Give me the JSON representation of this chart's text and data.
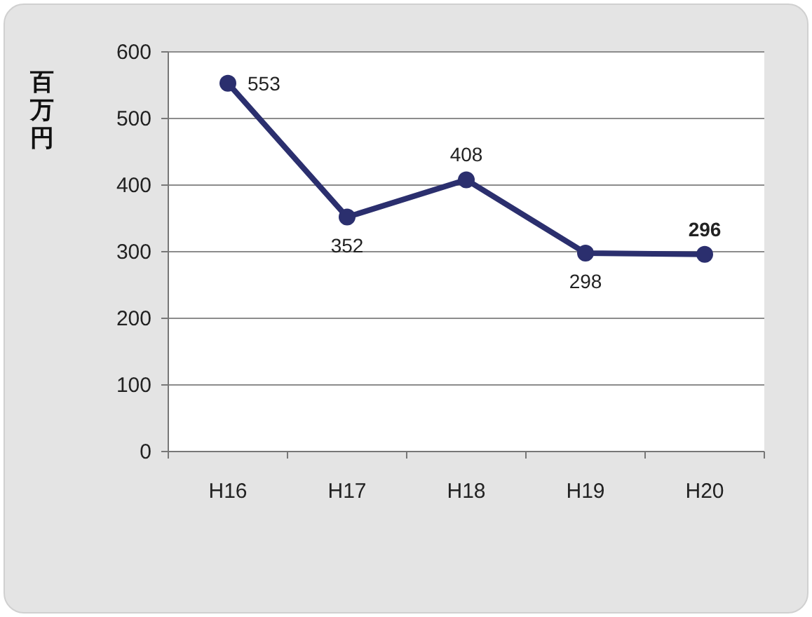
{
  "chart_data": {
    "type": "line",
    "ylabel": "百万円",
    "categories": [
      "H16",
      "H17",
      "H18",
      "H19",
      "H20"
    ],
    "series": [
      {
        "color": "#2b2f6e",
        "values": [
          553,
          352,
          408,
          298,
          296
        ]
      }
    ],
    "ylim": [
      0,
      600
    ],
    "yticks": [
      0,
      100,
      200,
      300,
      400,
      500,
      600
    ],
    "grid": "y",
    "marker": "circle",
    "line_style": "solid",
    "data_labels": true
  }
}
